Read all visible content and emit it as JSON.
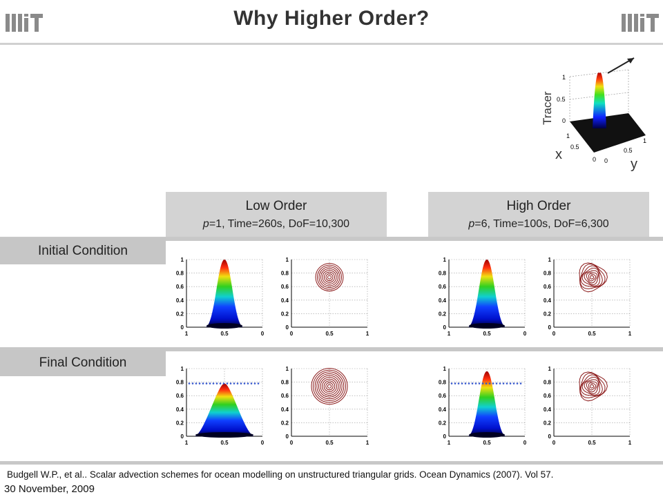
{
  "slide": {
    "title": "Why Higher Order?",
    "logo_text": "MIT"
  },
  "columns": {
    "low": {
      "title": "Low Order",
      "params_p": "p",
      "params_rest": "=1, Time=260s, DoF=10,300"
    },
    "high": {
      "title": "High Order",
      "params_p": "p",
      "params_rest": "=6, Time=100s, DoF=6,300"
    }
  },
  "rows": {
    "initial": "Initial Condition",
    "final": "Final Condition"
  },
  "surface_axis": {
    "ticks": [
      "1",
      "0.8",
      "0.6",
      "0.4",
      "0.2",
      "0"
    ],
    "xticks": [
      "1",
      "0.5",
      "0"
    ]
  },
  "contour_axis": {
    "ticks": [
      "1",
      "0.8",
      "0.6",
      "0.4",
      "0.2",
      "0"
    ],
    "xticks": [
      "0",
      "0.5",
      "1"
    ]
  },
  "inset": {
    "zlabel": "Tracer",
    "xlabel": "x",
    "ylabel": "y",
    "zticks": [
      "1",
      "0.5",
      "0"
    ],
    "xticks": [
      "1",
      "0.5",
      "0"
    ],
    "yticks": [
      "0",
      "0.5",
      "1"
    ]
  },
  "colors": {
    "contour": "#8b1a1a",
    "dotted": "#3355cc"
  },
  "footer": {
    "citation": "Budgell W.P., et al.. Scalar advection schemes for ocean modelling on unstructured triangular grids. Ocean Dynamics (2007). Vol 57.",
    "date": "30 November, 2009"
  }
}
